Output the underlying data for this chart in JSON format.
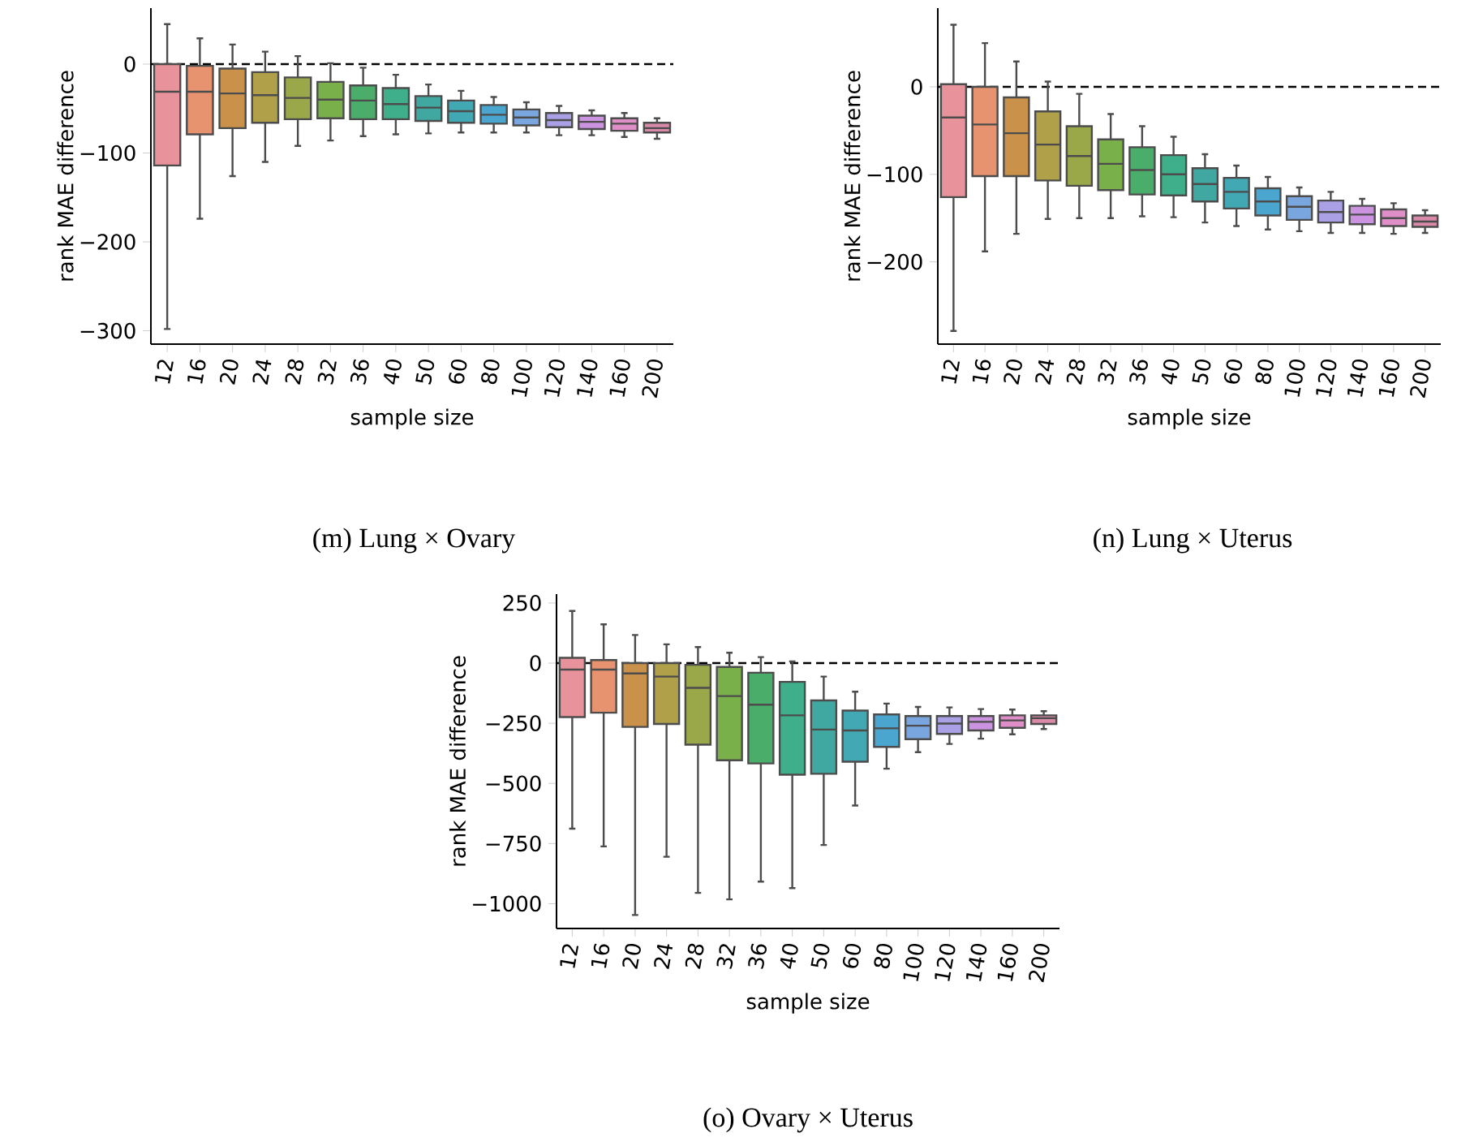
{
  "chart_data": [
    {
      "type": "box",
      "categories": [
        "12",
        "16",
        "20",
        "24",
        "28",
        "32",
        "36",
        "40",
        "50",
        "60",
        "80",
        "100",
        "120",
        "140",
        "160",
        "200"
      ],
      "colors": [
        "#e8939b",
        "#e8936f",
        "#c9914a",
        "#b0a04a",
        "#9aa84a",
        "#7ab04a",
        "#4aae6a",
        "#3fae8a",
        "#40a8a0",
        "#42a8b4",
        "#4aa6cf",
        "#7aa6e0",
        "#a9a0e6",
        "#cc94e0",
        "#e08ec8",
        "#d88aa8"
      ],
      "boxes": [
        {
          "low": -298,
          "q1": -114,
          "median": -31,
          "q3": 0,
          "high": 45
        },
        {
          "low": -174,
          "q1": -79,
          "median": -31,
          "q3": -2,
          "high": 29
        },
        {
          "low": -126,
          "q1": -72,
          "median": -33,
          "q3": -5,
          "high": 22
        },
        {
          "low": -110,
          "q1": -66,
          "median": -35,
          "q3": -9,
          "high": 14
        },
        {
          "low": -92,
          "q1": -62,
          "median": -38,
          "q3": -15,
          "high": 9
        },
        {
          "low": -86,
          "q1": -61,
          "median": -40,
          "q3": -20,
          "high": 1
        },
        {
          "low": -81,
          "q1": -62,
          "median": -41,
          "q3": -24,
          "high": -4
        },
        {
          "low": -79,
          "q1": -62,
          "median": -45,
          "q3": -27,
          "high": -12
        },
        {
          "low": -78,
          "q1": -64,
          "median": -49,
          "q3": -36,
          "high": -23
        },
        {
          "low": -77,
          "q1": -66,
          "median": -53,
          "q3": -41,
          "high": -30
        },
        {
          "low": -77,
          "q1": -67,
          "median": -57,
          "q3": -46,
          "high": -37
        },
        {
          "low": -77,
          "q1": -69,
          "median": -60,
          "q3": -51,
          "high": -43
        },
        {
          "low": -80,
          "q1": -71,
          "median": -63,
          "q3": -55,
          "high": -47
        },
        {
          "low": -80,
          "q1": -73,
          "median": -65,
          "q3": -58,
          "high": -52
        },
        {
          "low": -82,
          "q1": -75,
          "median": -67,
          "q3": -61,
          "high": -55
        },
        {
          "low": -84,
          "q1": -77,
          "median": -72,
          "q3": -66,
          "high": -61
        }
      ],
      "xlabel": "sample size",
      "ylabel": "rank MAE difference",
      "ylim": [
        -315,
        63
      ],
      "yticks": [
        {
          "value": -300,
          "label": "−300"
        },
        {
          "value": -200,
          "label": "−200"
        },
        {
          "value": -100,
          "label": "−100"
        },
        0
      ],
      "ref_lines": [
        {
          "axis": "y",
          "value": 0,
          "color": "#000000",
          "line_style": "dashed"
        }
      ],
      "annotations": [
        "(m) Lung × Ovary"
      ]
    },
    {
      "type": "box",
      "categories": [
        "12",
        "16",
        "20",
        "24",
        "28",
        "32",
        "36",
        "40",
        "50",
        "60",
        "80",
        "100",
        "120",
        "140",
        "160",
        "200"
      ],
      "colors": [
        "#e8939b",
        "#e8936f",
        "#c9914a",
        "#b0a04a",
        "#9aa84a",
        "#7ab04a",
        "#4aae6a",
        "#3fae8a",
        "#40a8a0",
        "#42a8b4",
        "#4aa6cf",
        "#7aa6e0",
        "#a9a0e6",
        "#cc94e0",
        "#e08ec8",
        "#d88aa8"
      ],
      "boxes": [
        {
          "low": -279,
          "q1": -126,
          "median": -35,
          "q3": 3,
          "high": 71
        },
        {
          "low": -188,
          "q1": -102,
          "median": -43,
          "q3": 0,
          "high": 50
        },
        {
          "low": -168,
          "q1": -102,
          "median": -53,
          "q3": -12,
          "high": 29
        },
        {
          "low": -151,
          "q1": -107,
          "median": -66,
          "q3": -28,
          "high": 6
        },
        {
          "low": -150,
          "q1": -113,
          "median": -79,
          "q3": -45,
          "high": -8
        },
        {
          "low": -150,
          "q1": -118,
          "median": -88,
          "q3": -60,
          "high": -31
        },
        {
          "low": -148,
          "q1": -123,
          "median": -95,
          "q3": -69,
          "high": -45
        },
        {
          "low": -149,
          "q1": -124,
          "median": -100,
          "q3": -78,
          "high": -57
        },
        {
          "low": -155,
          "q1": -131,
          "median": -111,
          "q3": -93,
          "high": -77
        },
        {
          "low": -159,
          "q1": -139,
          "median": -120,
          "q3": -104,
          "high": -90
        },
        {
          "low": -163,
          "q1": -147,
          "median": -131,
          "q3": -116,
          "high": -103
        },
        {
          "low": -165,
          "q1": -152,
          "median": -137,
          "q3": -125,
          "high": -115
        },
        {
          "low": -167,
          "q1": -155,
          "median": -143,
          "q3": -130,
          "high": -120
        },
        {
          "low": -167,
          "q1": -157,
          "median": -146,
          "q3": -136,
          "high": -128
        },
        {
          "low": -168,
          "q1": -159,
          "median": -150,
          "q3": -140,
          "high": -133
        },
        {
          "low": -167,
          "q1": -160,
          "median": -154,
          "q3": -147,
          "high": -141
        }
      ],
      "xlabel": "sample size",
      "ylabel": "rank MAE difference",
      "ylim": [
        -294,
        90
      ],
      "yticks": [
        {
          "value": -200,
          "label": "−200"
        },
        {
          "value": -100,
          "label": "−100"
        },
        0
      ],
      "ref_lines": [
        {
          "axis": "y",
          "value": 0,
          "color": "#000000",
          "line_style": "dashed"
        }
      ],
      "annotations": [
        "(n) Lung × Uterus"
      ]
    },
    {
      "type": "box",
      "categories": [
        "12",
        "16",
        "20",
        "24",
        "28",
        "32",
        "36",
        "40",
        "50",
        "60",
        "80",
        "100",
        "120",
        "140",
        "160",
        "200"
      ],
      "colors": [
        "#e8939b",
        "#e8936f",
        "#c9914a",
        "#b0a04a",
        "#9aa84a",
        "#7ab04a",
        "#4aae6a",
        "#3fae8a",
        "#40a8a0",
        "#42a8b4",
        "#4aa6cf",
        "#7aa6e0",
        "#a9a0e6",
        "#cc94e0",
        "#e08ec8",
        "#d88aa8"
      ],
      "boxes": [
        {
          "low": -688,
          "q1": -224,
          "median": -27,
          "q3": 22,
          "high": 217
        },
        {
          "low": -762,
          "q1": -206,
          "median": -27,
          "q3": 13,
          "high": 161
        },
        {
          "low": -1047,
          "q1": -265,
          "median": -43,
          "q3": 0,
          "high": 117
        },
        {
          "low": -805,
          "q1": -253,
          "median": -56,
          "q3": 0,
          "high": 78
        },
        {
          "low": -955,
          "q1": -339,
          "median": -103,
          "q3": -7,
          "high": 67
        },
        {
          "low": -982,
          "q1": -404,
          "median": -137,
          "q3": -16,
          "high": 43
        },
        {
          "low": -908,
          "q1": -417,
          "median": -173,
          "q3": -40,
          "high": 25
        },
        {
          "low": -935,
          "q1": -464,
          "median": -217,
          "q3": -78,
          "high": 7
        },
        {
          "low": -756,
          "q1": -460,
          "median": -276,
          "q3": -155,
          "high": -56
        },
        {
          "low": -592,
          "q1": -410,
          "median": -280,
          "q3": -197,
          "high": -119
        },
        {
          "low": -439,
          "q1": -348,
          "median": -271,
          "q3": -213,
          "high": -168
        },
        {
          "low": -370,
          "q1": -316,
          "median": -260,
          "q3": -220,
          "high": -182
        },
        {
          "low": -336,
          "q1": -294,
          "median": -251,
          "q3": -220,
          "high": -184
        },
        {
          "low": -314,
          "q1": -280,
          "median": -244,
          "q3": -220,
          "high": -191
        },
        {
          "low": -296,
          "q1": -269,
          "median": -238,
          "q3": -217,
          "high": -193
        },
        {
          "low": -274,
          "q1": -253,
          "median": -229,
          "q3": -217,
          "high": -200
        }
      ],
      "xlabel": "sample size",
      "ylabel": "rank MAE difference",
      "ylim": [
        -1103,
        287
      ],
      "yticks": [
        {
          "value": -1000,
          "label": "−1000"
        },
        {
          "value": -750,
          "label": "−750"
        },
        {
          "value": -500,
          "label": "−500"
        },
        {
          "value": -250,
          "label": "−250"
        },
        0,
        250
      ],
      "ref_lines": [
        {
          "axis": "y",
          "value": 0,
          "color": "#000000",
          "line_style": "dashed"
        }
      ],
      "annotations": [
        "(o) Ovary × Uterus"
      ]
    }
  ]
}
